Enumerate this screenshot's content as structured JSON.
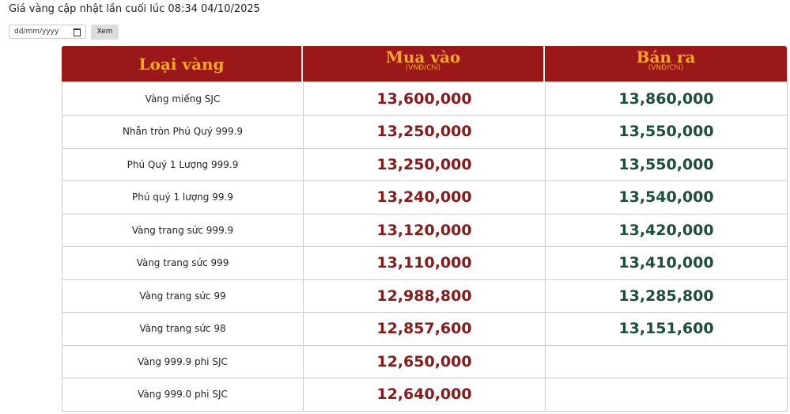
{
  "header": {
    "updated": "Giá vàng cập nhật lần cuối lúc 08:34 04/10/2025"
  },
  "form": {
    "date_placeholder": "dd/mm/yyyy",
    "button": "Xem"
  },
  "table": {
    "columns": [
      {
        "title": "Loại vàng"
      },
      {
        "title": "Mua vào",
        "unit": "(VNĐ/Chỉ)"
      },
      {
        "title": "Bán ra",
        "unit": "(VNĐ/Chỉ)"
      }
    ],
    "rows": [
      [
        "Vàng miếng SJC",
        "13,600,000",
        "13,860,000"
      ],
      [
        "Nhẫn tròn Phú Quý 999.9",
        "13,250,000",
        "13,550,000"
      ],
      [
        "Phú Quý 1 Lượng 999.9",
        "13,250,000",
        "13,550,000"
      ],
      [
        "Phú quý 1 lượng 99.9",
        "13,240,000",
        "13,540,000"
      ],
      [
        "Vàng trang sức 999.9",
        "13,120,000",
        "13,420,000"
      ],
      [
        "Vàng trang sức 999",
        "13,110,000",
        "13,410,000"
      ],
      [
        "Vàng trang sức 99",
        "12,988,800",
        "13,285,800"
      ],
      [
        "Vàng trang sức 98",
        "12,857,600",
        "13,151,600"
      ],
      [
        "Vàng 999.9 phi SJC",
        "12,650,000"
      ],
      [
        "Vàng 999.0 phi SJC",
        "12,640,000"
      ]
    ]
  }
}
